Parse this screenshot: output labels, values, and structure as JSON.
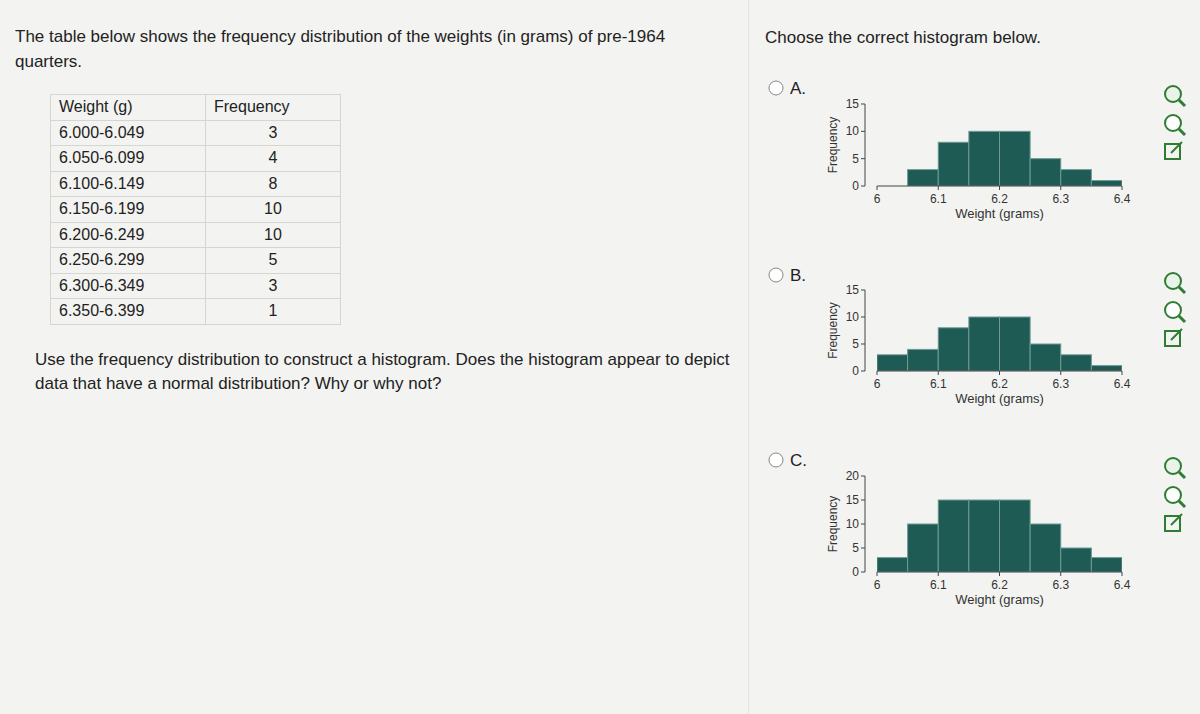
{
  "question": {
    "text": "The table below shows the frequency distribution of the weights (in grams) of pre-1964 quarters."
  },
  "table": {
    "headers": [
      "Weight (g)",
      "Frequency"
    ],
    "rows": [
      [
        "6.000-6.049",
        3
      ],
      [
        "6.050-6.099",
        4
      ],
      [
        "6.100-6.149",
        8
      ],
      [
        "6.150-6.199",
        10
      ],
      [
        "6.200-6.249",
        10
      ],
      [
        "6.250-6.299",
        5
      ],
      [
        "6.300-6.349",
        3
      ],
      [
        "6.350-6.399",
        1
      ]
    ]
  },
  "prompt": "Use the frequency distribution to construct a histogram. Does the histogram appear to depict data that have a normal distribution? Why or why not?",
  "instruction": "Choose the correct histogram below.",
  "choices": [
    "A.",
    "B.",
    "C."
  ],
  "chart_data": [
    {
      "type": "histogram",
      "x_label": "Weight (grams)",
      "y_label": "Frequency",
      "color": "#1f5b55",
      "bins": [
        6.05,
        6.1,
        6.15,
        6.2,
        6.25,
        6.3,
        6.35,
        6.4
      ],
      "counts": [
        3,
        8,
        10,
        10,
        5,
        3,
        1
      ],
      "xlim": [
        6,
        6.4
      ],
      "xticks": [
        6,
        6.1,
        6.2,
        6.3,
        6.4
      ],
      "ylim": [
        0,
        15
      ],
      "yticks": [
        0,
        5,
        10,
        15
      ]
    },
    {
      "type": "histogram",
      "x_label": "Weight (grams)",
      "y_label": "Frequency",
      "color": "#1f5b55",
      "bins": [
        6,
        6.05,
        6.1,
        6.15,
        6.2,
        6.25,
        6.3,
        6.35,
        6.4
      ],
      "counts": [
        3,
        4,
        8,
        10,
        10,
        5,
        3,
        1
      ],
      "xlim": [
        6,
        6.4
      ],
      "xticks": [
        6,
        6.1,
        6.2,
        6.3,
        6.4
      ],
      "ylim": [
        0,
        15
      ],
      "yticks": [
        0,
        5,
        10,
        15
      ]
    },
    {
      "type": "histogram",
      "x_label": "Weight (grams)",
      "y_label": "Frequency",
      "color": "#1f5b55",
      "bins": [
        6,
        6.05,
        6.1,
        6.15,
        6.2,
        6.25,
        6.3,
        6.35,
        6.4
      ],
      "counts": [
        3,
        10,
        15,
        15,
        15,
        10,
        5,
        3
      ],
      "xlim": [
        6,
        6.4
      ],
      "xticks": [
        6,
        6.1,
        6.2,
        6.3,
        6.4
      ],
      "ylim": [
        0,
        20
      ],
      "yticks": [
        0,
        5,
        10,
        15,
        20
      ]
    }
  ]
}
